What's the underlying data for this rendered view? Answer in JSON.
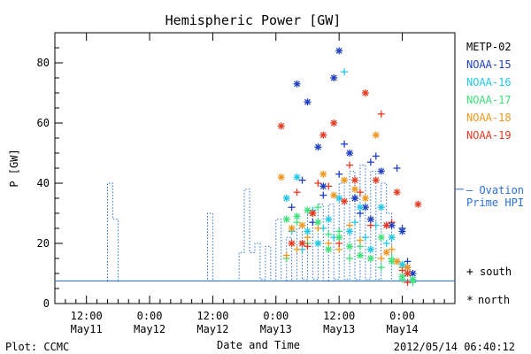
{
  "chart_data": {
    "type": "scatter",
    "title": "Hemispheric Power [GW]",
    "ylabel": "P [GW]",
    "xlabel": "Date and Time",
    "ylim": [
      0,
      90
    ],
    "y_ticks": [
      0,
      20,
      40,
      60,
      80
    ],
    "x_tick_labels": [
      {
        "hour": 12,
        "line1": "12:00",
        "line2": "May11"
      },
      {
        "hour": 24,
        "line1": "0:00",
        "line2": "May12"
      },
      {
        "hour": 36,
        "line1": "12:00",
        "line2": "May12"
      },
      {
        "hour": 48,
        "line1": "0:00",
        "line2": "May13"
      },
      {
        "hour": 60,
        "line1": "12:00",
        "line2": "May13"
      },
      {
        "hour": 72,
        "line1": "0:00",
        "line2": "May14"
      }
    ],
    "xlim_hours": [
      6,
      82
    ],
    "footer_left": "Plot: CCMC",
    "footer_right": "2012/05/14 06:40:12",
    "legend": [
      {
        "name": "METP-02",
        "color": "#000000"
      },
      {
        "name": "NOAA-15",
        "color": "#1f3fbf"
      },
      {
        "name": "NOAA-16",
        "color": "#22c7e8"
      },
      {
        "name": "NOAA-17",
        "color": "#3ee07a"
      },
      {
        "name": "NOAA-18",
        "color": "#f0961e"
      },
      {
        "name": "NOAA-19",
        "color": "#e83a22"
      }
    ],
    "ovation_label_line1": "— Ovation",
    "ovation_label_line2": "Prime HPI",
    "ovation_color": "#2a6fd6",
    "ovation_series": [
      [
        6,
        7.5
      ],
      [
        16,
        7.5
      ],
      [
        16,
        40
      ],
      [
        17,
        40
      ],
      [
        17,
        28
      ],
      [
        18,
        28
      ],
      [
        18,
        7.5
      ],
      [
        35,
        7.5
      ],
      [
        35,
        30
      ],
      [
        36,
        30
      ],
      [
        36,
        7.5
      ],
      [
        41,
        7.5
      ],
      [
        41,
        17
      ],
      [
        42,
        17
      ],
      [
        42,
        38
      ],
      [
        43,
        38
      ],
      [
        43,
        17
      ],
      [
        44,
        17
      ],
      [
        44,
        20
      ],
      [
        45,
        20
      ],
      [
        45,
        8
      ],
      [
        46,
        8
      ],
      [
        46,
        19
      ],
      [
        47,
        19
      ],
      [
        47,
        7.5
      ],
      [
        48,
        7.5
      ],
      [
        48,
        28
      ],
      [
        49,
        28
      ],
      [
        49,
        7.5
      ],
      [
        50,
        7.5
      ],
      [
        50,
        22
      ],
      [
        51,
        22
      ],
      [
        51,
        7.5
      ],
      [
        52,
        7.5
      ],
      [
        52,
        25
      ],
      [
        53,
        25
      ],
      [
        53,
        8
      ],
      [
        54,
        8
      ],
      [
        54,
        30
      ],
      [
        55,
        30
      ],
      [
        55,
        8
      ],
      [
        56,
        8
      ],
      [
        56,
        33
      ],
      [
        57,
        33
      ],
      [
        57,
        7.5
      ],
      [
        58,
        7.5
      ],
      [
        58,
        33
      ],
      [
        59,
        33
      ],
      [
        59,
        8
      ],
      [
        60,
        8
      ],
      [
        60,
        40
      ],
      [
        61,
        40
      ],
      [
        61,
        8
      ],
      [
        62,
        8
      ],
      [
        62,
        44
      ],
      [
        63,
        44
      ],
      [
        63,
        8
      ],
      [
        64,
        8
      ],
      [
        64,
        46
      ],
      [
        65,
        46
      ],
      [
        65,
        8
      ],
      [
        66,
        8
      ],
      [
        66,
        44
      ],
      [
        67,
        44
      ],
      [
        67,
        8
      ],
      [
        68,
        8
      ],
      [
        68,
        40
      ],
      [
        69,
        40
      ],
      [
        69,
        30
      ],
      [
        70,
        30
      ],
      [
        70,
        7.5
      ],
      [
        82,
        7.5
      ]
    ],
    "scatter_south_plus": [
      {
        "sat": "NOAA-15",
        "points": [
          [
            51,
            32
          ],
          [
            53,
            41
          ],
          [
            55,
            27
          ],
          [
            57,
            36
          ],
          [
            60,
            43
          ],
          [
            61,
            53
          ],
          [
            63,
            35
          ],
          [
            64,
            30
          ],
          [
            66,
            47
          ],
          [
            67,
            49
          ],
          [
            69,
            26
          ],
          [
            71,
            45
          ],
          [
            72,
            25
          ],
          [
            73,
            14
          ]
        ]
      },
      {
        "sat": "NOAA-16",
        "points": [
          [
            51,
            24
          ],
          [
            53,
            18
          ],
          [
            55,
            31
          ],
          [
            57,
            25
          ],
          [
            59,
            22
          ],
          [
            61,
            77
          ],
          [
            63,
            27
          ],
          [
            65,
            22
          ],
          [
            67,
            26
          ],
          [
            69,
            20
          ],
          [
            71,
            14
          ],
          [
            73,
            10
          ]
        ]
      },
      {
        "sat": "NOAA-17",
        "points": [
          [
            50,
            15
          ],
          [
            52,
            27
          ],
          [
            54,
            20
          ],
          [
            56,
            32
          ],
          [
            58,
            23
          ],
          [
            60,
            24
          ],
          [
            62,
            15
          ],
          [
            64,
            19
          ],
          [
            66,
            18
          ],
          [
            68,
            12
          ],
          [
            70,
            15
          ],
          [
            72,
            8
          ],
          [
            74,
            7
          ]
        ]
      },
      {
        "sat": "NOAA-18",
        "points": [
          [
            50,
            16
          ],
          [
            52,
            18
          ],
          [
            54,
            22
          ],
          [
            56,
            25
          ],
          [
            58,
            20
          ],
          [
            60,
            18
          ],
          [
            62,
            26
          ],
          [
            64,
            21
          ],
          [
            66,
            28
          ],
          [
            68,
            15
          ],
          [
            70,
            18
          ],
          [
            72,
            12
          ]
        ]
      },
      {
        "sat": "NOAA-19",
        "points": [
          [
            52,
            37
          ],
          [
            54,
            19
          ],
          [
            56,
            40
          ],
          [
            58,
            39
          ],
          [
            60,
            20
          ],
          [
            62,
            46
          ],
          [
            64,
            37
          ],
          [
            66,
            26
          ],
          [
            68,
            63
          ],
          [
            70,
            27
          ],
          [
            72,
            11
          ],
          [
            73,
            7
          ]
        ]
      }
    ],
    "scatter_north_star": [
      {
        "sat": "NOAA-15",
        "points": [
          [
            52,
            73
          ],
          [
            54,
            67
          ],
          [
            56,
            52
          ],
          [
            57,
            39
          ],
          [
            59,
            75
          ],
          [
            60,
            84
          ],
          [
            62,
            50
          ],
          [
            63,
            35
          ],
          [
            65,
            32
          ],
          [
            66,
            28
          ],
          [
            68,
            44
          ],
          [
            70,
            26
          ],
          [
            72,
            24
          ],
          [
            73,
            12
          ],
          [
            74,
            10
          ]
        ]
      },
      {
        "sat": "NOAA-16",
        "points": [
          [
            50,
            35
          ],
          [
            52,
            42
          ],
          [
            54,
            24
          ],
          [
            56,
            20
          ],
          [
            58,
            28
          ],
          [
            60,
            35
          ],
          [
            62,
            24
          ],
          [
            64,
            32
          ],
          [
            66,
            18
          ],
          [
            68,
            32
          ],
          [
            70,
            22
          ],
          [
            72,
            13
          ],
          [
            74,
            8
          ]
        ]
      },
      {
        "sat": "NOAA-17",
        "points": [
          [
            50,
            28
          ],
          [
            52,
            29
          ],
          [
            54,
            31
          ],
          [
            56,
            27
          ],
          [
            58,
            18
          ],
          [
            60,
            22
          ],
          [
            62,
            19
          ],
          [
            64,
            16
          ],
          [
            66,
            15
          ],
          [
            68,
            22
          ],
          [
            70,
            14
          ],
          [
            72,
            9
          ],
          [
            74,
            8
          ]
        ]
      },
      {
        "sat": "NOAA-18",
        "points": [
          [
            49,
            42
          ],
          [
            51,
            25
          ],
          [
            53,
            26
          ],
          [
            55,
            30
          ],
          [
            57,
            43
          ],
          [
            59,
            36
          ],
          [
            61,
            41
          ],
          [
            63,
            38
          ],
          [
            65,
            35
          ],
          [
            67,
            56
          ],
          [
            69,
            17
          ],
          [
            71,
            14
          ],
          [
            73,
            12
          ]
        ]
      },
      {
        "sat": "NOAA-19",
        "points": [
          [
            49,
            59
          ],
          [
            51,
            20
          ],
          [
            53,
            20
          ],
          [
            55,
            30
          ],
          [
            57,
            56
          ],
          [
            59,
            60
          ],
          [
            61,
            34
          ],
          [
            63,
            41
          ],
          [
            65,
            70
          ],
          [
            67,
            41
          ],
          [
            69,
            26
          ],
          [
            71,
            37
          ],
          [
            73,
            10
          ],
          [
            75,
            33
          ]
        ]
      }
    ],
    "symbol_legend": [
      {
        "symbol": "+",
        "text": "south"
      },
      {
        "symbol": "*",
        "text": "north"
      }
    ]
  }
}
